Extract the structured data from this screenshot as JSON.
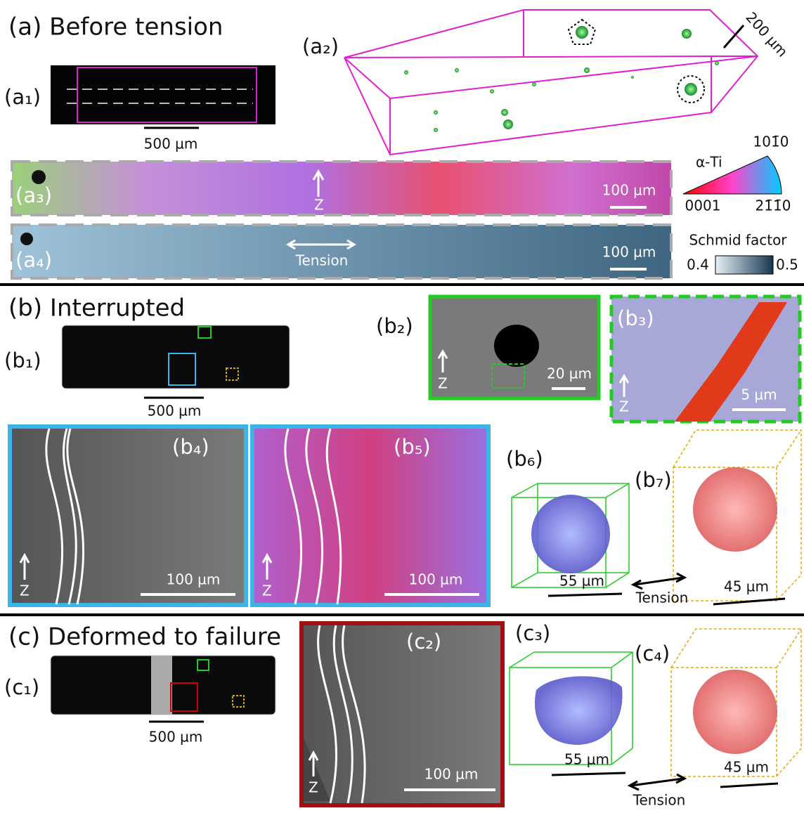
{
  "a": {
    "title": "(a) Before tension",
    "a1": {
      "label": "(a₁)",
      "scale": "500 µm"
    },
    "a2": {
      "label": "(a₂)",
      "scale": "200 µm"
    },
    "a3": {
      "label": "(a₃)",
      "z": "Z",
      "scale": "100 µm"
    },
    "ipf": {
      "phase": "α-Ti",
      "top": "101̄0",
      "left": "0001",
      "right": "21̄1̄0"
    },
    "a4": {
      "label": "(a₄)",
      "tension": "Tension",
      "scale": "100 µm"
    },
    "schmid": {
      "title": "Schmid factor",
      "min": 0.4,
      "max": 0.5
    }
  },
  "b": {
    "title": "(b) Interrupted",
    "b1": {
      "label": "(b₁)",
      "scale": "500 µm"
    },
    "b2": {
      "label": "(b₂)",
      "z": "Z",
      "scale": "20 µm"
    },
    "b3": {
      "label": "(b₃)",
      "z": "Z",
      "scale": "5 µm"
    },
    "b4": {
      "label": "(b₄)",
      "z": "Z",
      "scale": "100 µm"
    },
    "b5": {
      "label": "(b₅)",
      "z": "Z",
      "scale": "100 µm"
    },
    "b6": {
      "label": "(b₆)",
      "scale": "55 µm"
    },
    "b7": {
      "label": "(b₇)",
      "scale": "45 µm"
    },
    "tension": "Tension"
  },
  "c": {
    "title": "(c) Deformed to failure",
    "c1": {
      "label": "(c₁)",
      "scale": "500 µm"
    },
    "c2": {
      "label": "(c₂)",
      "z": "Z",
      "scale": "100 µm"
    },
    "c3": {
      "label": "(c₃)",
      "scale": "55 µm"
    },
    "c4": {
      "label": "(c₄)",
      "scale": "45 µm"
    },
    "tension": "Tension"
  }
}
